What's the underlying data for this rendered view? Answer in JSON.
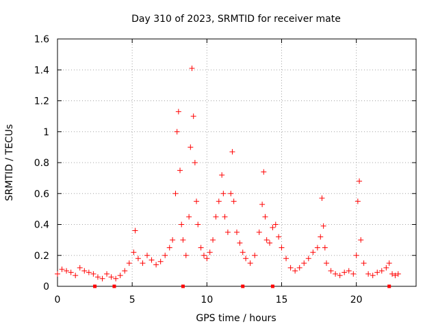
{
  "chart_data": {
    "type": "scatter",
    "title": "Day 310 of 2023, SRMTID for receiver mate",
    "xlabel": "GPS time / hours",
    "ylabel": "SRMTID / TECUs",
    "xlim": [
      0,
      24
    ],
    "ylim": [
      0,
      1.6
    ],
    "xticks": [
      0,
      5,
      10,
      15,
      20
    ],
    "xtick_labels": [
      "0",
      "5",
      "10",
      "15",
      "20"
    ],
    "yticks": [
      0,
      0.2,
      0.4,
      0.6,
      0.8,
      1,
      1.2,
      1.4,
      1.6
    ],
    "ytick_labels": [
      "0",
      "0.2",
      "0.4",
      "0.6",
      "0.8",
      "1",
      "1.2",
      "1.4",
      "1.6"
    ],
    "grid": true,
    "marker": "+",
    "color": "#ff0000",
    "series": [
      {
        "name": "SRMTID",
        "x": [
          0.0,
          0.3,
          0.6,
          0.9,
          1.2,
          1.5,
          1.8,
          2.1,
          2.4,
          2.7,
          3.0,
          3.3,
          3.6,
          3.9,
          4.2,
          4.5,
          4.8,
          5.1,
          5.2,
          5.4,
          5.7,
          6.0,
          6.3,
          6.6,
          6.9,
          7.2,
          7.5,
          7.7,
          7.9,
          8.0,
          8.1,
          8.2,
          8.3,
          8.4,
          8.6,
          8.8,
          8.9,
          9.0,
          9.1,
          9.2,
          9.3,
          9.4,
          9.6,
          9.8,
          10.0,
          10.2,
          10.4,
          10.6,
          10.8,
          11.0,
          11.1,
          11.2,
          11.4,
          11.6,
          11.7,
          11.8,
          12.0,
          12.2,
          12.4,
          12.6,
          12.9,
          13.2,
          13.5,
          13.7,
          13.8,
          13.9,
          14.0,
          14.2,
          14.4,
          14.6,
          14.8,
          15.0,
          15.3,
          15.6,
          15.9,
          16.2,
          16.5,
          16.8,
          17.1,
          17.4,
          17.6,
          17.7,
          17.8,
          17.9,
          18.0,
          18.3,
          18.6,
          18.9,
          19.2,
          19.5,
          19.8,
          20.0,
          20.1,
          20.2,
          20.3,
          20.5,
          20.8,
          21.1,
          21.4,
          21.7,
          22.0,
          22.2,
          22.4,
          22.6,
          22.8
        ],
        "y": [
          0.08,
          0.11,
          0.1,
          0.09,
          0.07,
          0.12,
          0.1,
          0.09,
          0.08,
          0.06,
          0.05,
          0.08,
          0.06,
          0.05,
          0.07,
          0.1,
          0.15,
          0.22,
          0.36,
          0.18,
          0.15,
          0.2,
          0.17,
          0.14,
          0.16,
          0.2,
          0.25,
          0.3,
          0.6,
          1.0,
          1.13,
          0.75,
          0.4,
          0.3,
          0.2,
          0.45,
          0.9,
          1.41,
          1.1,
          0.8,
          0.55,
          0.4,
          0.25,
          0.2,
          0.18,
          0.22,
          0.3,
          0.45,
          0.55,
          0.72,
          0.6,
          0.45,
          0.35,
          0.6,
          0.87,
          0.55,
          0.35,
          0.28,
          0.22,
          0.18,
          0.15,
          0.2,
          0.35,
          0.53,
          0.74,
          0.45,
          0.3,
          0.28,
          0.38,
          0.4,
          0.32,
          0.25,
          0.18,
          0.12,
          0.1,
          0.12,
          0.15,
          0.18,
          0.22,
          0.25,
          0.32,
          0.57,
          0.39,
          0.25,
          0.15,
          0.1,
          0.08,
          0.07,
          0.09,
          0.1,
          0.08,
          0.2,
          0.55,
          0.68,
          0.3,
          0.15,
          0.08,
          0.07,
          0.09,
          0.1,
          0.12,
          0.15,
          0.08,
          0.07,
          0.08
        ]
      },
      {
        "name": "marker",
        "x": [
          2.5,
          3.8,
          8.4,
          12.4,
          14.4,
          22.2
        ],
        "y": [
          0,
          0,
          0,
          0,
          0,
          0
        ]
      }
    ]
  }
}
